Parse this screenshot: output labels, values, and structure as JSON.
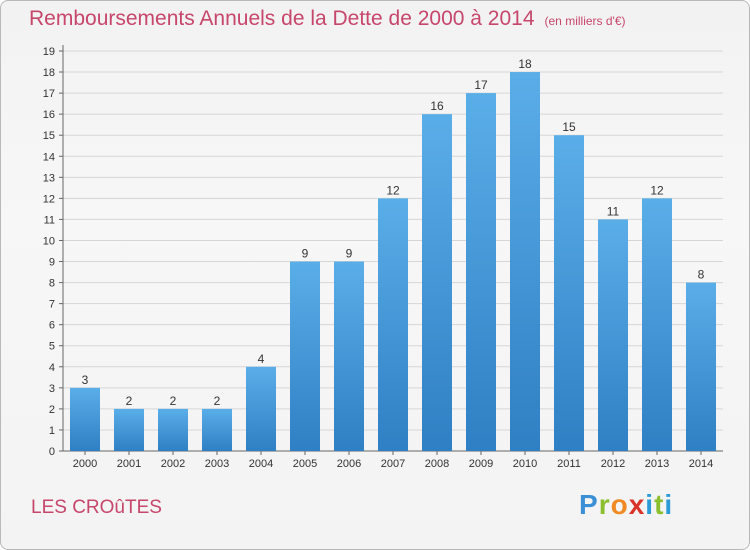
{
  "header": {
    "title": "Remboursements Annuels de la Dette de 2000 à 2014",
    "subtitle": "(en milliers d'€)"
  },
  "footer": {
    "commune": "LES CROûTES",
    "brand": [
      "P",
      "r",
      "o",
      "x",
      "i",
      "t",
      "i"
    ]
  },
  "colors": {
    "accent": "#c7466b",
    "bar_top": "#5aaee8",
    "bar_bottom": "#2f7fc4",
    "grid": "#d6d6d6"
  },
  "chart_data": {
    "type": "bar",
    "title": "Remboursements Annuels de la Dette de 2000 à 2014",
    "subtitle": "(en milliers d'€)",
    "xlabel": "",
    "ylabel": "",
    "ylim": [
      0,
      19
    ],
    "yticks": [
      0,
      1,
      2,
      3,
      4,
      5,
      6,
      7,
      8,
      9,
      10,
      11,
      12,
      13,
      14,
      15,
      16,
      17,
      18,
      19
    ],
    "grid": true,
    "categories": [
      "2000",
      "2001",
      "2002",
      "2003",
      "2004",
      "2005",
      "2006",
      "2007",
      "2008",
      "2009",
      "2010",
      "2011",
      "2012",
      "2013",
      "2014"
    ],
    "values": [
      3,
      2,
      2,
      2,
      4,
      9,
      9,
      12,
      16,
      17,
      18,
      15,
      11,
      12,
      8
    ],
    "data_labels": [
      "3",
      "2",
      "2",
      "2",
      "4",
      "9",
      "9",
      "12",
      "16",
      "17",
      "18",
      "15",
      "11",
      "12",
      "8"
    ]
  }
}
